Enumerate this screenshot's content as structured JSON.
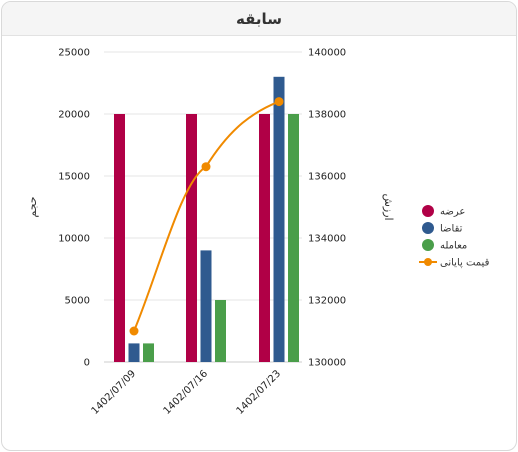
{
  "header": {
    "title": "سابقه"
  },
  "chart_data": {
    "type": "bar",
    "categories": [
      "1402/07/09",
      "1402/07/16",
      "1402/07/23"
    ],
    "series": [
      {
        "name": "عرضه",
        "kind": "bar",
        "axis": "left",
        "color": "#b00046",
        "values": [
          20000,
          20000,
          20000
        ]
      },
      {
        "name": "تقاضا",
        "kind": "bar",
        "axis": "left",
        "color": "#2f5a8f",
        "values": [
          1500,
          9000,
          23000
        ]
      },
      {
        "name": "معامله",
        "kind": "bar",
        "axis": "left",
        "color": "#4a9e4a",
        "values": [
          1500,
          5000,
          20000
        ]
      },
      {
        "name": "قیمت پایانی",
        "kind": "line",
        "axis": "right",
        "color": "#f08a00",
        "values": [
          131000,
          136300,
          138400
        ]
      }
    ],
    "y_left": {
      "label": "حجم",
      "ylim": [
        0,
        25000
      ],
      "ticks": [
        0,
        5000,
        10000,
        15000,
        20000,
        25000
      ]
    },
    "y_right": {
      "label": "ارزش",
      "ylim": [
        130000,
        140000
      ],
      "ticks": [
        130000,
        132000,
        134000,
        136000,
        138000,
        140000
      ]
    },
    "grid": true,
    "legend": "right"
  }
}
